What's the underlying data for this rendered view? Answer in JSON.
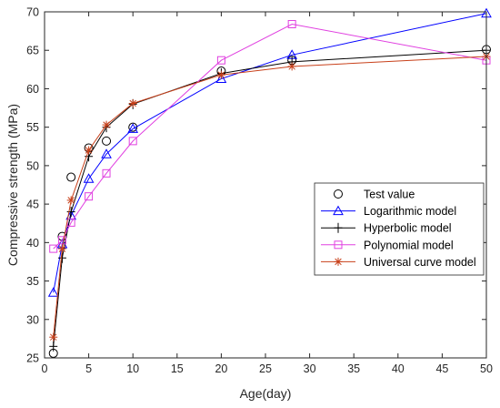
{
  "chart_data": {
    "type": "line",
    "title": "",
    "xlabel": "Age(day)",
    "ylabel": "Compressive strength (MPa)",
    "xlim": [
      0,
      50
    ],
    "ylim": [
      25,
      70
    ],
    "xticks": [
      0,
      5,
      10,
      15,
      20,
      25,
      30,
      35,
      40,
      45,
      50
    ],
    "yticks": [
      25,
      30,
      35,
      40,
      45,
      50,
      55,
      60,
      65,
      70
    ],
    "grid": false,
    "legend_position": "center-right",
    "series": [
      {
        "name": "Test value",
        "marker": "circle",
        "line": false,
        "color": "#000000",
        "x": [
          1,
          2,
          3,
          5,
          7,
          10,
          20,
          28,
          50
        ],
        "y": [
          25.6,
          40.8,
          48.5,
          52.3,
          53.2,
          55.0,
          62.3,
          63.7,
          65.1
        ]
      },
      {
        "name": "Logarithmic model",
        "marker": "triangle",
        "line": true,
        "color": "#0000ff",
        "x": [
          1,
          2,
          3,
          5,
          7,
          10,
          20,
          28,
          50
        ],
        "y": [
          33.5,
          39.8,
          43.5,
          48.3,
          51.5,
          54.8,
          61.3,
          64.4,
          69.8
        ]
      },
      {
        "name": "Hyperbolic model",
        "marker": "plus",
        "line": true,
        "color": "#000000",
        "x": [
          1,
          2,
          3,
          5,
          7,
          10,
          20,
          28,
          50
        ],
        "y": [
          26.5,
          38.0,
          44.0,
          51.2,
          55.0,
          58.0,
          62.0,
          63.5,
          65.0
        ]
      },
      {
        "name": "Polynomial model",
        "marker": "square",
        "line": true,
        "color": "#e040e0",
        "x": [
          1,
          2,
          3,
          5,
          7,
          10,
          20,
          28,
          50
        ],
        "y": [
          39.2,
          40.3,
          42.6,
          46.0,
          49.0,
          53.2,
          63.7,
          68.4,
          63.7
        ]
      },
      {
        "name": "Universal curve model",
        "marker": "asterisk",
        "line": true,
        "color": "#c8401a",
        "x": [
          1,
          2,
          3,
          5,
          7,
          10,
          20,
          28,
          50
        ],
        "y": [
          27.7,
          39.2,
          45.5,
          52.0,
          55.3,
          58.1,
          61.8,
          62.9,
          64.2
        ]
      }
    ]
  }
}
